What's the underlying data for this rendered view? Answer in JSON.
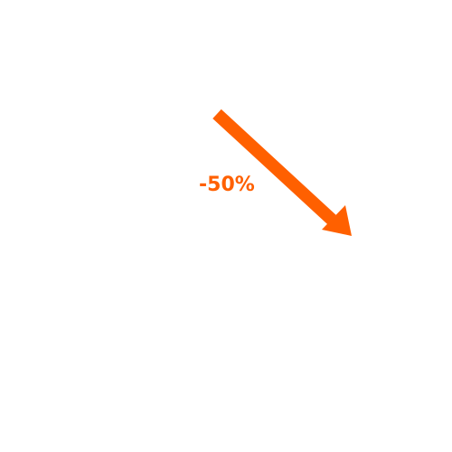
{
  "indicator": {
    "change_label": "-50%",
    "direction": "down",
    "color": "#ff6000",
    "icon": "arrow-down-right-icon"
  }
}
